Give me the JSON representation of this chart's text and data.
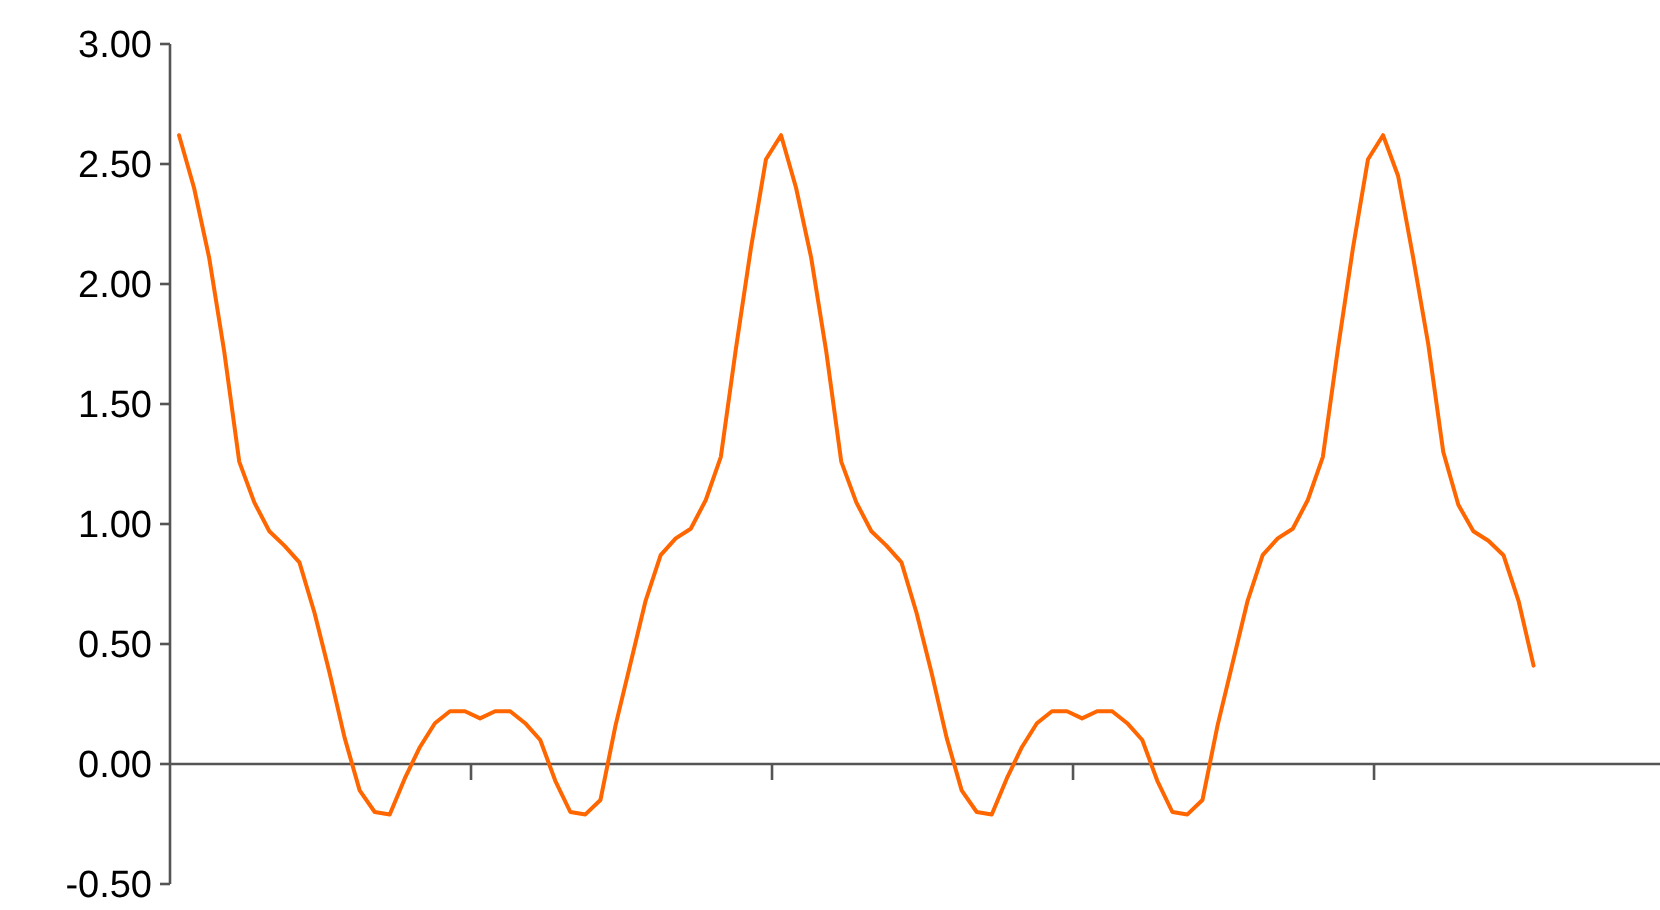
{
  "chart_data": {
    "type": "line",
    "ylim": [
      -0.5,
      3
    ],
    "categories": [
      null,
      null,
      null,
      null,
      null,
      null,
      null,
      null,
      null,
      null,
      null,
      null,
      null,
      null,
      null,
      null,
      null,
      null,
      null,
      null,
      null,
      null,
      null,
      null,
      null,
      null,
      null,
      null,
      null,
      null,
      null,
      null,
      null,
      null,
      null,
      null,
      null,
      null,
      null,
      null,
      null,
      null,
      null,
      null,
      null,
      null,
      null,
      null,
      null,
      null,
      null,
      null,
      null,
      null,
      null,
      null,
      null,
      null,
      null,
      null,
      null,
      null,
      null,
      null,
      null,
      null,
      null,
      null,
      null,
      null,
      null,
      null,
      null,
      null,
      null,
      null,
      null,
      null,
      null,
      null,
      null,
      null,
      null,
      null,
      null,
      null,
      null,
      null,
      null,
      null,
      null
    ],
    "yticks": [
      {
        "value": -0.5,
        "label": "-0.50"
      },
      {
        "value": 0,
        "label": "0.00"
      },
      {
        "value": 0.5,
        "label": "0.50"
      },
      {
        "value": 1,
        "label": "1.00"
      },
      {
        "value": 1.5,
        "label": "1.50"
      },
      {
        "value": 2,
        "label": "2.00"
      },
      {
        "value": 2.5,
        "label": "2.50"
      },
      {
        "value": 3,
        "label": "3.00"
      }
    ],
    "marker": "none",
    "line_style": "solid",
    "series": [
      {
        "color": "#ff6600",
        "values": [
          2.62,
          2.4,
          2.11,
          1.72,
          1.26,
          1.09,
          0.97,
          0.91,
          0.84,
          0.63,
          0.38,
          0.11,
          -0.11,
          -0.2,
          -0.21,
          -0.06,
          0.07,
          0.17,
          0.22,
          0.22,
          0.19,
          0.22,
          0.22,
          0.17,
          0.1,
          -0.07,
          -0.2,
          -0.21,
          -0.15,
          0.16,
          0.42,
          0.68,
          0.87,
          0.94,
          0.98,
          1.1,
          1.28,
          1.73,
          2.15,
          2.52,
          2.62,
          2.4,
          2.11,
          1.72,
          1.26,
          1.09,
          0.97,
          0.91,
          0.84,
          0.63,
          0.38,
          0.11,
          -0.11,
          -0.2,
          -0.21,
          -0.06,
          0.07,
          0.17,
          0.22,
          0.22,
          0.19,
          0.22,
          0.22,
          0.17,
          0.1,
          -0.07,
          -0.2,
          -0.21,
          -0.15,
          0.16,
          0.42,
          0.68,
          0.87,
          0.94,
          0.98,
          1.1,
          1.28,
          1.73,
          2.15,
          2.52,
          2.62,
          2.45,
          2.11,
          1.75,
          1.3,
          1.08,
          0.97,
          0.93,
          0.87,
          0.68,
          0.41
        ]
      }
    ]
  }
}
